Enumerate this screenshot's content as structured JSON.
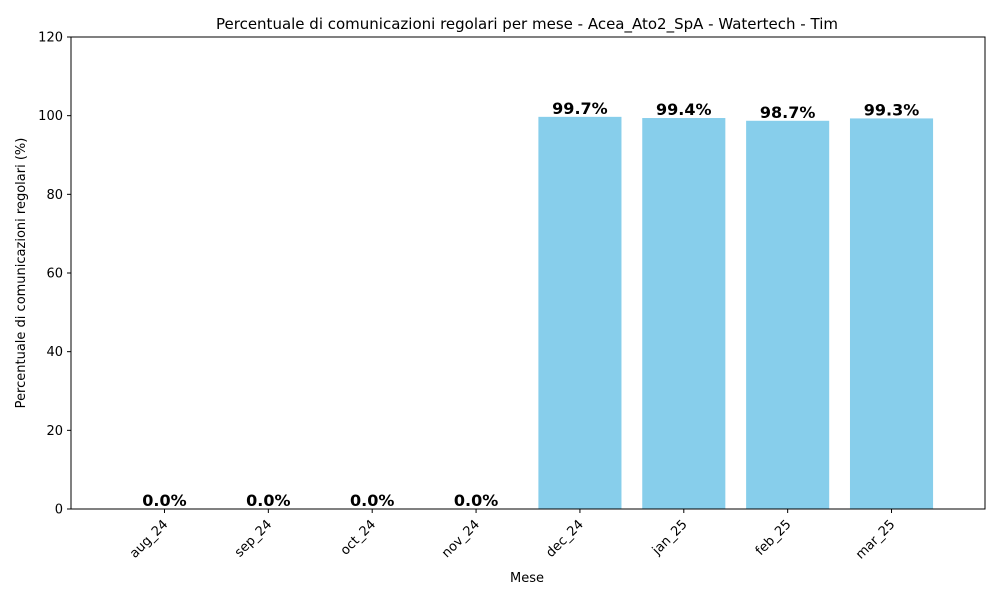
{
  "chart_data": {
    "type": "bar",
    "title": "Percentuale di comunicazioni regolari per mese - Acea_Ato2_SpA - Watertech - Tim",
    "xlabel": "Mese",
    "ylabel": "Percentuale di comunicazioni regolari (%)",
    "categories": [
      "aug_24",
      "sep_24",
      "oct_24",
      "nov_24",
      "dec_24",
      "jan_25",
      "feb_25",
      "mar_25"
    ],
    "values": [
      0.0,
      0.0,
      0.0,
      0.0,
      99.7,
      99.4,
      98.7,
      99.3
    ],
    "value_labels": [
      "0.0%",
      "0.0%",
      "0.0%",
      "0.0%",
      "99.7%",
      "99.4%",
      "98.7%",
      "99.3%"
    ],
    "ylim": [
      0,
      120
    ],
    "yticks": [
      0,
      20,
      40,
      60,
      80,
      100,
      120
    ],
    "grid": false,
    "bar_color": "#87CEEB",
    "x_tick_rotation_deg": 45
  }
}
